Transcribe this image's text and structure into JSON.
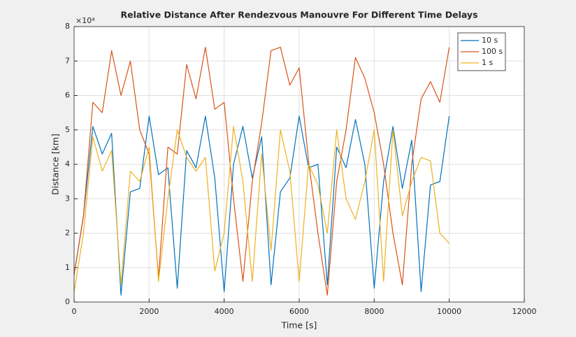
{
  "chart_data": {
    "type": "line",
    "title": "Relative Distance After Rendezvous Manouvre For Different Time Delays",
    "x_label": "Time [s]",
    "y_label": "Distance [km]",
    "y_multiplier": "×10⁴",
    "x": [
      0,
      250,
      500,
      750,
      1000,
      1250,
      1500,
      1750,
      2000,
      2250,
      2500,
      2750,
      3000,
      3250,
      3500,
      3750,
      4000,
      4250,
      4500,
      4750,
      5000,
      5250,
      5500,
      5750,
      6000,
      6250,
      6500,
      6750,
      7000,
      7250,
      7500,
      7750,
      8000,
      8250,
      8500,
      8750,
      9000,
      9250,
      9500,
      9750,
      10000
    ],
    "series": [
      {
        "name": "10 s",
        "color": "#0072bd",
        "values": [
          0.8,
          2.5,
          5.1,
          4.3,
          4.9,
          0.2,
          3.2,
          3.3,
          5.4,
          3.7,
          3.9,
          0.4,
          4.4,
          3.9,
          5.4,
          3.6,
          0.3,
          4.0,
          5.1,
          3.6,
          4.8,
          0.5,
          3.2,
          3.6,
          5.4,
          3.9,
          4.0,
          0.5,
          4.5,
          3.9,
          5.3,
          4.0,
          0.4,
          3.5,
          5.1,
          3.3,
          4.7,
          0.3,
          3.4,
          3.5,
          5.4
        ]
      },
      {
        "name": "100 s",
        "color": "#d95319",
        "values": [
          0.8,
          2.5,
          5.8,
          5.5,
          7.3,
          6.0,
          7.0,
          5.0,
          4.3,
          0.7,
          4.5,
          4.3,
          6.9,
          5.9,
          7.4,
          5.6,
          5.8,
          3.0,
          0.6,
          3.5,
          5.2,
          7.3,
          7.4,
          6.3,
          6.8,
          4.1,
          2.0,
          0.2,
          3.5,
          5.0,
          7.1,
          6.5,
          5.5,
          4.0,
          2.0,
          0.5,
          4.0,
          5.9,
          6.4,
          5.8,
          7.4
        ]
      },
      {
        "name": "1 s",
        "color": "#edb120",
        "values": [
          0.3,
          2.0,
          4.8,
          3.8,
          4.4,
          0.5,
          3.8,
          3.5,
          4.5,
          0.6,
          3.0,
          5.0,
          4.2,
          3.8,
          4.2,
          0.9,
          2.0,
          5.1,
          3.5,
          0.6,
          4.3,
          1.5,
          5.0,
          3.8,
          0.6,
          4.0,
          3.4,
          2.0,
          5.0,
          3.0,
          2.4,
          3.5,
          5.0,
          0.6,
          5.0,
          2.5,
          3.5,
          4.2,
          4.1,
          2.0,
          1.7
        ]
      }
    ],
    "xlim": [
      0,
      12000
    ],
    "xticks": [
      0,
      2000,
      4000,
      6000,
      8000,
      10000,
      12000
    ],
    "ylim": [
      0,
      8
    ],
    "yticks": [
      0,
      1,
      2,
      3,
      4,
      5,
      6,
      7,
      8
    ],
    "grid": true,
    "legend": "top-right"
  }
}
